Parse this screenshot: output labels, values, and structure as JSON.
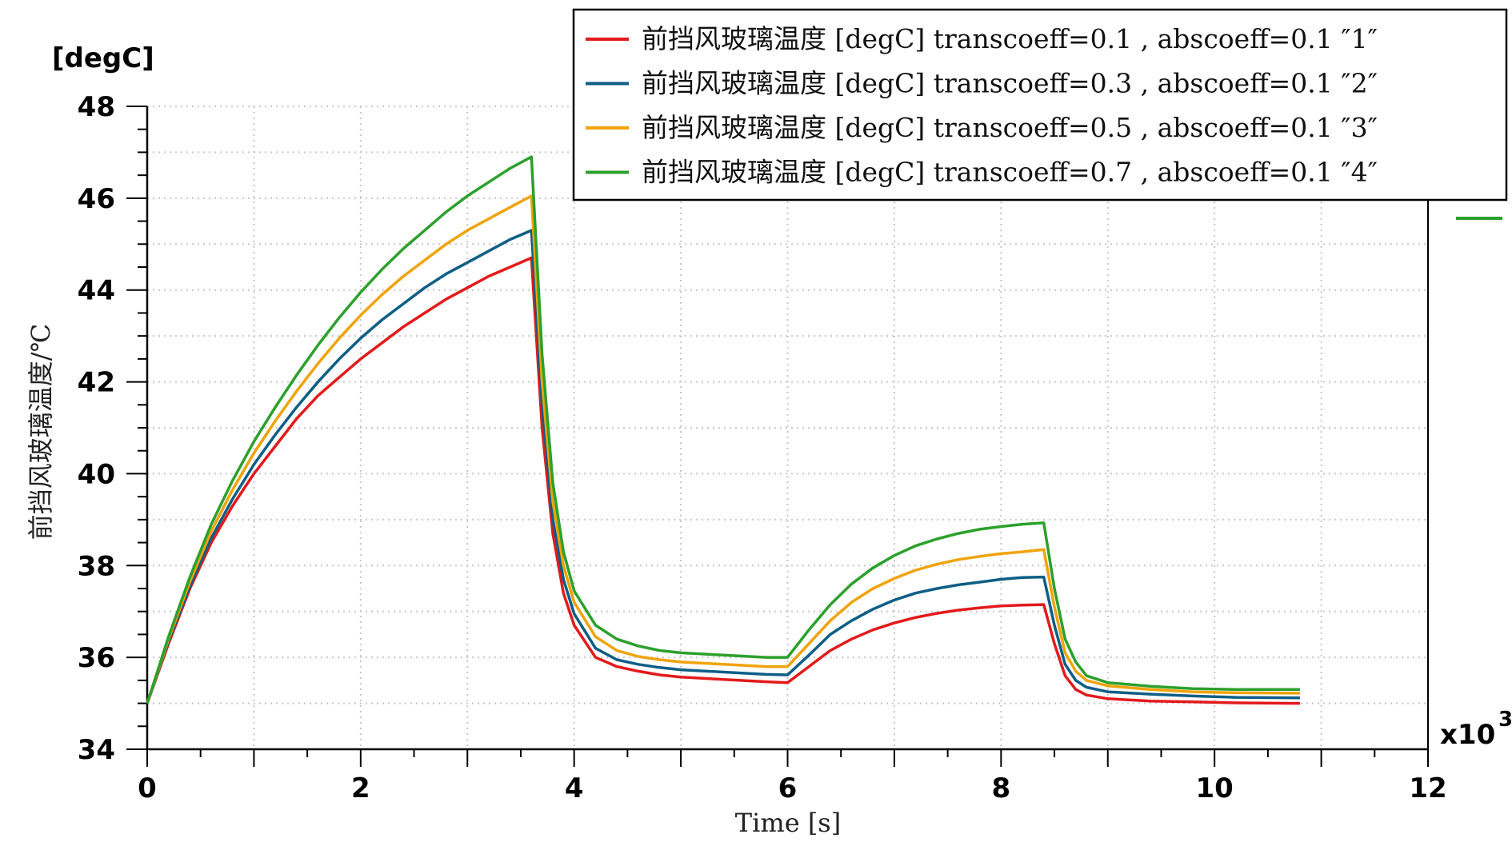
{
  "chart_data": {
    "type": "line",
    "xlabel": "Time [s]",
    "ylabel": "前挡风玻璃温度/℃",
    "y_unit_label": "[degC]",
    "x_multiplier_label": "x10",
    "x_multiplier_exponent": "3",
    "xlim": [
      0,
      12
    ],
    "ylim": [
      34,
      48
    ],
    "x_ticks": [
      "0",
      "2",
      "4",
      "6",
      "8",
      "10",
      "12"
    ],
    "y_ticks": [
      "34",
      "36",
      "38",
      "40",
      "42",
      "44",
      "46",
      "48"
    ],
    "grid": true,
    "legend_position": "top-right",
    "series": [
      {
        "name": "前挡风玻璃温度 [degC] transcoeff=0.1 , abscoeff=0.1  ″1″",
        "color": "#e31a1c",
        "x": [
          0,
          0.2,
          0.4,
          0.6,
          0.8,
          1.0,
          1.2,
          1.4,
          1.6,
          1.8,
          2.0,
          2.2,
          2.4,
          2.6,
          2.8,
          3.0,
          3.2,
          3.4,
          3.6,
          3.7,
          3.8,
          3.9,
          4.0,
          4.2,
          4.4,
          4.6,
          4.8,
          5.0,
          5.4,
          5.8,
          6.0,
          6.2,
          6.4,
          6.6,
          6.8,
          7.0,
          7.2,
          7.4,
          7.6,
          7.8,
          8.0,
          8.2,
          8.4,
          8.5,
          8.6,
          8.7,
          8.8,
          9.0,
          9.4,
          9.8,
          10.2,
          10.8
        ],
        "values": [
          35.0,
          36.3,
          37.5,
          38.5,
          39.3,
          40.0,
          40.6,
          41.2,
          41.7,
          42.1,
          42.5,
          42.85,
          43.2,
          43.5,
          43.8,
          44.05,
          44.3,
          44.5,
          44.7,
          41.0,
          38.7,
          37.4,
          36.7,
          36.0,
          35.8,
          35.7,
          35.62,
          35.57,
          35.52,
          35.47,
          35.45,
          35.8,
          36.15,
          36.4,
          36.6,
          36.75,
          36.87,
          36.96,
          37.03,
          37.08,
          37.12,
          37.14,
          37.15,
          36.3,
          35.6,
          35.3,
          35.18,
          35.1,
          35.05,
          35.03,
          35.01,
          35.0
        ]
      },
      {
        "name": "前挡风玻璃温度 [degC] transcoeff=0.3 , abscoeff=0.1  ″2″",
        "color": "#0e5e86",
        "x": [
          0,
          0.2,
          0.4,
          0.6,
          0.8,
          1.0,
          1.2,
          1.4,
          1.6,
          1.8,
          2.0,
          2.2,
          2.4,
          2.6,
          2.8,
          3.0,
          3.2,
          3.4,
          3.6,
          3.7,
          3.8,
          3.9,
          4.0,
          4.2,
          4.4,
          4.6,
          4.8,
          5.0,
          5.4,
          5.8,
          6.0,
          6.2,
          6.4,
          6.6,
          6.8,
          7.0,
          7.2,
          7.4,
          7.6,
          7.8,
          8.0,
          8.2,
          8.4,
          8.5,
          8.6,
          8.7,
          8.8,
          9.0,
          9.4,
          9.8,
          10.2,
          10.8
        ],
        "values": [
          35.0,
          36.35,
          37.55,
          38.6,
          39.45,
          40.2,
          40.85,
          41.45,
          42.0,
          42.5,
          42.95,
          43.35,
          43.7,
          44.05,
          44.35,
          44.6,
          44.85,
          45.1,
          45.3,
          41.5,
          39.0,
          37.7,
          36.95,
          36.2,
          35.95,
          35.85,
          35.78,
          35.73,
          35.68,
          35.63,
          35.62,
          36.05,
          36.5,
          36.8,
          37.05,
          37.25,
          37.4,
          37.5,
          37.58,
          37.64,
          37.7,
          37.74,
          37.75,
          36.7,
          35.85,
          35.5,
          35.35,
          35.25,
          35.2,
          35.16,
          35.13,
          35.12
        ]
      },
      {
        "name": "前挡风玻璃温度 [degC] transcoeff=0.5 , abscoeff=0.1  ″3″",
        "color": "#f0a30a",
        "x": [
          0,
          0.2,
          0.4,
          0.6,
          0.8,
          1.0,
          1.2,
          1.4,
          1.6,
          1.8,
          2.0,
          2.2,
          2.4,
          2.6,
          2.8,
          3.0,
          3.2,
          3.4,
          3.6,
          3.7,
          3.8,
          3.9,
          4.0,
          4.2,
          4.4,
          4.6,
          4.8,
          5.0,
          5.4,
          5.8,
          6.0,
          6.2,
          6.4,
          6.6,
          6.8,
          7.0,
          7.2,
          7.4,
          7.6,
          7.8,
          8.0,
          8.2,
          8.4,
          8.5,
          8.6,
          8.7,
          8.8,
          9.0,
          9.4,
          9.8,
          10.2,
          10.8
        ],
        "values": [
          35.0,
          36.4,
          37.65,
          38.75,
          39.65,
          40.45,
          41.15,
          41.8,
          42.4,
          42.95,
          43.45,
          43.9,
          44.3,
          44.65,
          45.0,
          45.3,
          45.55,
          45.8,
          46.05,
          42.0,
          39.4,
          38.0,
          37.2,
          36.45,
          36.15,
          36.02,
          35.95,
          35.9,
          35.85,
          35.8,
          35.8,
          36.3,
          36.8,
          37.2,
          37.5,
          37.72,
          37.9,
          38.03,
          38.13,
          38.2,
          38.26,
          38.3,
          38.35,
          37.1,
          36.1,
          35.7,
          35.5,
          35.38,
          35.3,
          35.25,
          35.23,
          35.22
        ]
      },
      {
        "name": "前挡风玻璃温度 [degC] transcoeff=0.7 , abscoeff=0.1  ″4″",
        "color": "#2ca02c",
        "x": [
          0,
          0.2,
          0.4,
          0.6,
          0.8,
          1.0,
          1.2,
          1.4,
          1.6,
          1.8,
          2.0,
          2.2,
          2.4,
          2.6,
          2.8,
          3.0,
          3.2,
          3.4,
          3.6,
          3.7,
          3.8,
          3.9,
          4.0,
          4.2,
          4.4,
          4.6,
          4.8,
          5.0,
          5.4,
          5.8,
          6.0,
          6.2,
          6.4,
          6.6,
          6.8,
          7.0,
          7.2,
          7.4,
          7.6,
          7.8,
          8.0,
          8.2,
          8.4,
          8.5,
          8.6,
          8.7,
          8.8,
          9.0,
          9.4,
          9.8,
          10.2,
          10.8
        ],
        "values": [
          35.0,
          36.45,
          37.75,
          38.9,
          39.85,
          40.7,
          41.45,
          42.15,
          42.8,
          43.4,
          43.95,
          44.45,
          44.9,
          45.3,
          45.7,
          46.05,
          46.35,
          46.65,
          46.9,
          42.6,
          39.8,
          38.3,
          37.45,
          36.7,
          36.4,
          36.25,
          36.15,
          36.1,
          36.05,
          36.0,
          36.0,
          36.6,
          37.15,
          37.6,
          37.95,
          38.22,
          38.43,
          38.58,
          38.7,
          38.79,
          38.85,
          38.9,
          38.93,
          37.5,
          36.4,
          35.9,
          35.6,
          35.45,
          35.37,
          35.32,
          35.3,
          35.3
        ]
      }
    ]
  }
}
